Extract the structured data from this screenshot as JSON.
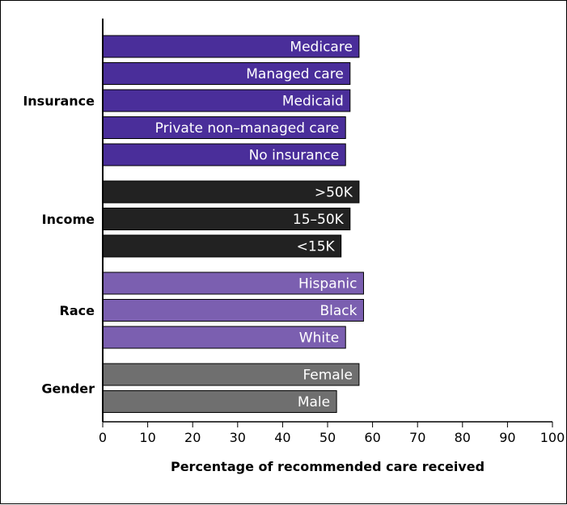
{
  "chart_data": {
    "type": "bar",
    "orientation": "horizontal",
    "xlabel": "Percentage of recommended care received",
    "xlim": [
      0,
      100
    ],
    "x_ticks": [
      0,
      10,
      20,
      30,
      40,
      50,
      60,
      70,
      80,
      90,
      100
    ],
    "grid": false,
    "groups": [
      {
        "name": "Insurance",
        "color": "#4a2e9a",
        "bars": [
          {
            "label": "Medicare",
            "value": 57
          },
          {
            "label": "Managed care",
            "value": 55
          },
          {
            "label": "Medicaid",
            "value": 55
          },
          {
            "label": "Private non–managed care",
            "value": 54
          },
          {
            "label": "No insurance",
            "value": 54
          }
        ]
      },
      {
        "name": "Income",
        "color": "#222222",
        "bars": [
          {
            "label": ">50K",
            "value": 57
          },
          {
            "label": "15–50K",
            "value": 55
          },
          {
            "label": "<15K",
            "value": 53
          }
        ]
      },
      {
        "name": "Race",
        "color": "#7b5fb0",
        "bars": [
          {
            "label": "Hispanic",
            "value": 58
          },
          {
            "label": "Black",
            "value": 58
          },
          {
            "label": "White",
            "value": 54
          }
        ]
      },
      {
        "name": "Gender",
        "color": "#6f6f6f",
        "bars": [
          {
            "label": "Female",
            "value": 57
          },
          {
            "label": "Male",
            "value": 52
          }
        ]
      }
    ]
  }
}
